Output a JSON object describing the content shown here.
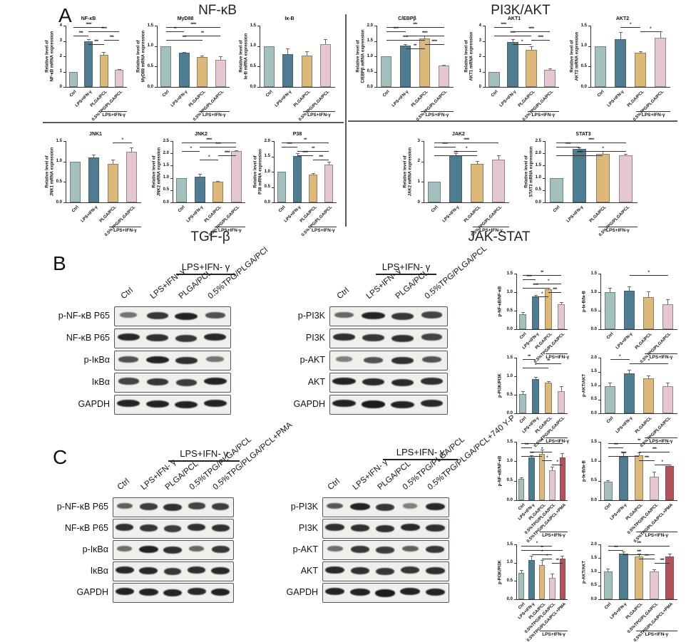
{
  "palette": {
    "bars": [
      "#a3bfbe",
      "#4e7d92",
      "#ddb87b",
      "#e5c8cf",
      "#b2535c"
    ],
    "axis": "#333333",
    "band": "#161616"
  },
  "groups": {
    "g4": {
      "labels": [
        "Ctrl",
        "LPS+IFN-γ",
        "PLGA/PCL",
        "0.5%TPG/PLGA/PCL"
      ],
      "bracket": {
        "from": 2,
        "to": 3,
        "label": "LPS+IFN-γ"
      }
    },
    "g5": {
      "labels": [
        "Ctrl",
        "LPS+IFN-γ",
        "PLGA/PCL",
        "0.5%TPG/PLGA/PCL",
        "0.5%TPG/PLGA/PCL+PMA"
      ],
      "bracket": {
        "from": 2,
        "to": 4,
        "label": "LPS+IFN-γ"
      }
    }
  },
  "panel_a": {
    "label": "A",
    "sections": {
      "nfkb": "NF-κB",
      "pi3k_akt": "PI3K/AKT",
      "tgf_b": "TGF-β",
      "jak_stat": "JAK-STAT"
    }
  },
  "panel_b": {
    "label": "B",
    "blots": [
      {
        "id": "bl",
        "treatment": "LPS+IFN- γ",
        "lanes": [
          "Ctrl",
          "LPS+IFN- γ",
          "PLGA/PCL",
          "0.5%TPG/PLGA/PCl"
        ],
        "rows": [
          {
            "name": "p-NF-κB P65",
            "bands": [
              0.35,
              0.8,
              0.95,
              0.6
            ]
          },
          {
            "name": "NF-κB P65",
            "bands": [
              0.9,
              0.85,
              0.8,
              0.9
            ]
          },
          {
            "name": "p-IκBα",
            "bands": [
              0.6,
              0.95,
              0.85,
              0.35
            ]
          },
          {
            "name": "IκBα",
            "bands": [
              0.7,
              0.8,
              0.75,
              0.95
            ]
          },
          {
            "name": "GAPDH",
            "bands": [
              0.95,
              0.95,
              0.95,
              0.95
            ]
          }
        ]
      },
      {
        "id": "bm",
        "treatment": "LPS+IFN- γ",
        "lanes": [
          "Ctrl",
          "LPS+IFN- γ",
          "PLGA/PCL",
          "0.5%TPG/PLGA/PCL"
        ],
        "rows": [
          {
            "name": "p-PI3K",
            "bands": [
              0.45,
              0.95,
              0.8,
              0.7
            ]
          },
          {
            "name": "PI3K",
            "bands": [
              0.85,
              0.8,
              0.85,
              0.7
            ]
          },
          {
            "name": "p-AKT",
            "bands": [
              0.25,
              0.6,
              0.85,
              0.6
            ]
          },
          {
            "name": "AKT",
            "bands": [
              0.95,
              0.9,
              0.9,
              0.85
            ]
          },
          {
            "name": "GAPDH",
            "bands": [
              0.95,
              1,
              0.95,
              0.9
            ]
          }
        ]
      }
    ]
  },
  "panel_c": {
    "label": "C",
    "blots": [
      {
        "id": "cl",
        "treatment": "LPS+IFN- γ",
        "lanes": [
          "Ctrl",
          "LPS+IFN- γ",
          "PLGA/PCL",
          "0.5%TPG/PLGA/PCL",
          "0.5%TPG/PLGA/PCL+PMA"
        ],
        "rows": [
          {
            "name": "p-NF-κB P65",
            "bands": [
              0.5,
              0.75,
              0.85,
              0.7,
              0.75
            ]
          },
          {
            "name": "NF-κB P65",
            "bands": [
              0.85,
              0.8,
              0.75,
              0.85,
              0.85
            ]
          },
          {
            "name": "p-IκBα",
            "bands": [
              0.4,
              0.95,
              0.85,
              0.45,
              0.8
            ]
          },
          {
            "name": "IκBα",
            "bands": [
              0.9,
              0.9,
              0.8,
              0.85,
              0.9
            ]
          },
          {
            "name": "GAPDH",
            "bands": [
              0.95,
              0.95,
              0.95,
              0.9,
              0.95
            ]
          }
        ]
      },
      {
        "id": "cm",
        "treatment": "LPS+IFN- γ",
        "lanes": [
          "Ctrl",
          "LPS+IFN- γ",
          "PLGA/PCL",
          "0.5%TPG/PLGA/PCL",
          "0.5%TPG/PLGA/PCL+740 Y-P"
        ],
        "rows": [
          {
            "name": "p-PI3K",
            "bands": [
              0.55,
              0.95,
              0.8,
              0.25,
              0.9
            ]
          },
          {
            "name": "PI3K",
            "bands": [
              0.85,
              0.85,
              0.85,
              0.9,
              0.85
            ]
          },
          {
            "name": "p-AKT",
            "bands": [
              0.4,
              0.8,
              0.75,
              0.5,
              0.8
            ]
          },
          {
            "name": "AKT",
            "bands": [
              0.9,
              0.85,
              0.8,
              0.8,
              0.85
            ]
          },
          {
            "name": "GAPDH",
            "bands": [
              0.95,
              0.95,
              1,
              0.95,
              0.95
            ]
          }
        ]
      }
    ]
  },
  "chart_data": [
    {
      "id": "a1",
      "panel": "A",
      "type": "bar",
      "title": "NF-κB",
      "ylabel": "Relative level of|NF-κB mRNA expression",
      "ymax": 4,
      "yticks": [
        "0",
        "1",
        "2",
        "3",
        "4"
      ],
      "group": "g4",
      "values": [
        1.0,
        3.0,
        2.1,
        1.1
      ],
      "errors": [
        0,
        0.12,
        0.18,
        0.08
      ],
      "sig": [
        [
          0,
          2,
          "****"
        ],
        [
          1,
          3,
          "****"
        ],
        [
          0,
          1,
          "***"
        ],
        [
          2,
          3,
          "***"
        ],
        [
          1,
          2,
          "***"
        ]
      ]
    },
    {
      "id": "a2",
      "panel": "A",
      "type": "bar",
      "title": "MyD88",
      "ylabel": "Relative level of|MyD88 mRNA expression",
      "ymax": 1.5,
      "yticks": [
        "0.0",
        "0.5",
        "1.0",
        "1.5"
      ],
      "group": "g4",
      "values": [
        1.0,
        0.84,
        0.74,
        0.67
      ],
      "errors": [
        0,
        0.02,
        0.02,
        0.08
      ],
      "sig": [
        [
          0,
          3,
          "****"
        ],
        [
          0,
          1,
          "**"
        ],
        [
          1,
          3,
          "**"
        ],
        [
          0,
          2,
          "***"
        ]
      ]
    },
    {
      "id": "a3",
      "panel": "A",
      "type": "bar",
      "title": "Iκ-B",
      "ylabel": "Relative level of|Iκ-B mRNA expression",
      "ymax": 1.5,
      "yticks": [
        "0.0",
        "0.5",
        "1.0",
        "1.5"
      ],
      "group": "g4",
      "values": [
        1.0,
        0.81,
        0.76,
        1.04
      ],
      "errors": [
        0,
        0.14,
        0.12,
        0.12
      ],
      "sig": []
    },
    {
      "id": "a4",
      "panel": "A",
      "type": "bar",
      "title": "C/EBPβ",
      "ylabel": "Relative level of|C/EBPβ mRNA expression",
      "ymax": 2,
      "yticks": [
        "0.0",
        "0.5",
        "1.0",
        "1.5",
        "2.0"
      ],
      "group": "g4",
      "values": [
        1.0,
        1.36,
        1.57,
        0.69
      ],
      "errors": [
        0,
        0.03,
        0.1,
        0.03
      ],
      "sig": [
        [
          0,
          3,
          "***"
        ],
        [
          0,
          1,
          "****"
        ],
        [
          1,
          3,
          "****"
        ],
        [
          0,
          2,
          "****"
        ],
        [
          2,
          3,
          "****"
        ],
        [
          1,
          2,
          "**"
        ]
      ]
    },
    {
      "id": "a5",
      "panel": "A",
      "type": "bar",
      "title": "AKT1",
      "ylabel": "Relative level of|AKT1 mRNA expression",
      "ymax": 4,
      "yticks": [
        "0",
        "1",
        "2",
        "3",
        "4"
      ],
      "group": "g4",
      "values": [
        1.0,
        2.95,
        2.4,
        1.1
      ],
      "errors": [
        0,
        0.15,
        0.25,
        0.1
      ],
      "sig": [
        [
          0,
          1,
          "****"
        ],
        [
          1,
          3,
          "****"
        ],
        [
          0,
          2,
          "****"
        ],
        [
          2,
          3,
          "****"
        ],
        [
          1,
          2,
          "*"
        ]
      ]
    },
    {
      "id": "a6",
      "panel": "A",
      "type": "bar",
      "title": "AKT2",
      "ylabel": "Relative level of|AKT2 mRNA expression",
      "ymax": 1.5,
      "yticks": [
        "0.0",
        "0.5",
        "1.0",
        "1.5"
      ],
      "group": "g4",
      "values": [
        1.0,
        1.17,
        0.84,
        1.2
      ],
      "errors": [
        0,
        0.18,
        0.04,
        0.16
      ],
      "sig": [
        [
          1,
          2,
          "*"
        ],
        [
          2,
          3,
          "*"
        ]
      ]
    },
    {
      "id": "a7",
      "panel": "A",
      "type": "bar",
      "title": "JNK1",
      "ylabel": "Relative level of|JNK1 mRNA expression",
      "ymax": 1.5,
      "yticks": [
        "0.0",
        "0.5",
        "1.0",
        "1.5"
      ],
      "group": "g4",
      "values": [
        1.0,
        1.1,
        0.95,
        1.23
      ],
      "errors": [
        0,
        0.07,
        0.1,
        0.12
      ],
      "sig": [
        [
          2,
          3,
          "*"
        ]
      ]
    },
    {
      "id": "a8",
      "panel": "A",
      "type": "bar",
      "title": "JNK2",
      "ylabel": "Relative level of|JNK2 mRNA expression",
      "ymax": 2.5,
      "yticks": [
        "0.0",
        "0.5",
        "1.0",
        "1.5",
        "2.0",
        "2.5"
      ],
      "group": "g4",
      "values": [
        1.0,
        1.05,
        0.85,
        2.1
      ],
      "errors": [
        0,
        0.1,
        0.02,
        0.03
      ],
      "sig": [
        [
          0,
          3,
          "****"
        ],
        [
          1,
          3,
          "****"
        ],
        [
          0,
          1,
          "*"
        ],
        [
          2,
          3,
          "****"
        ],
        [
          1,
          2,
          "*"
        ]
      ]
    },
    {
      "id": "a9",
      "panel": "A",
      "type": "bar",
      "title": "P38",
      "ylabel": "Relative level of|P38 mRNA expression",
      "ymax": 2,
      "yticks": [
        "0.0",
        "0.5",
        "1.0",
        "1.5",
        "2.0"
      ],
      "group": "g4",
      "values": [
        1.0,
        1.52,
        0.9,
        1.24
      ],
      "errors": [
        0,
        0.08,
        0.05,
        0.08
      ],
      "sig": [
        [
          0,
          3,
          "**"
        ],
        [
          0,
          1,
          "****"
        ],
        [
          1,
          3,
          "**"
        ],
        [
          1,
          2,
          "****"
        ],
        [
          2,
          3,
          "***"
        ]
      ]
    },
    {
      "id": "a10",
      "panel": "A",
      "type": "bar",
      "title": "JAK2",
      "ylabel": "Relative level of|JAK2 mRNA expression",
      "ymax": 3,
      "yticks": [
        "0",
        "1",
        "2",
        "3"
      ],
      "group": "g4",
      "values": [
        1.0,
        2.3,
        1.9,
        2.1
      ],
      "errors": [
        0,
        0.12,
        0.12,
        0.2
      ],
      "sig": [
        [
          0,
          3,
          "****"
        ],
        [
          0,
          1,
          "****"
        ],
        [
          1,
          2,
          "*"
        ],
        [
          0,
          2,
          "***"
        ]
      ]
    },
    {
      "id": "a11",
      "panel": "A",
      "type": "bar",
      "title": "STAT3",
      "ylabel": "Relative level of|STAT3 mRNA expression",
      "ymax": 2.5,
      "yticks": [
        "0.0",
        "0.5",
        "1.0",
        "1.5",
        "2.0",
        "2.5"
      ],
      "group": "g4",
      "values": [
        1.0,
        2.17,
        1.97,
        1.93
      ],
      "errors": [
        0,
        0.06,
        0.12,
        0.04
      ],
      "sig": [
        [
          0,
          3,
          "****"
        ],
        [
          0,
          1,
          "****"
        ],
        [
          1,
          3,
          "*"
        ],
        [
          0,
          2,
          "****"
        ]
      ]
    },
    {
      "id": "b1",
      "panel": "B",
      "type": "bar",
      "title": "",
      "ylabel": "p-NF-κB/NF-κB",
      "ymax": 1.5,
      "yticks": [
        "0.0",
        "0.5",
        "1.0",
        "1.5"
      ],
      "group": "g4",
      "values": [
        0.4,
        0.88,
        1.07,
        0.67
      ],
      "errors": [
        0.06,
        0.05,
        0.04,
        0.07
      ],
      "sig": [
        [
          0,
          3,
          "**"
        ],
        [
          0,
          1,
          "****"
        ],
        [
          1,
          3,
          "*"
        ],
        [
          0,
          2,
          "****"
        ],
        [
          2,
          3,
          "***"
        ],
        [
          1,
          2,
          "*"
        ]
      ]
    },
    {
      "id": "b2",
      "panel": "B",
      "type": "bar",
      "title": "",
      "ylabel": "p-Iκ-B/Iκ-B",
      "ymax": 1.5,
      "yticks": [
        "0.0",
        "0.5",
        "1.0",
        "1.5"
      ],
      "group": "g4",
      "values": [
        1.0,
        1.04,
        0.87,
        0.67
      ],
      "errors": [
        0.12,
        0.12,
        0.14,
        0.13
      ],
      "sig": [
        [
          1,
          3,
          "*"
        ]
      ]
    },
    {
      "id": "b3",
      "panel": "B",
      "type": "bar",
      "title": "",
      "ylabel": "p-PI3K/PI3K",
      "ymax": 1.5,
      "yticks": [
        "0.0",
        "0.5",
        "1.0",
        "1.5"
      ],
      "group": "g4",
      "values": [
        0.51,
        0.93,
        0.82,
        0.59
      ],
      "errors": [
        0.09,
        0.06,
        0.05,
        0.14
      ],
      "sig": [
        [
          0,
          1,
          "**"
        ],
        [
          1,
          3,
          "**"
        ],
        [
          0,
          2,
          "*"
        ]
      ]
    },
    {
      "id": "b4",
      "panel": "B",
      "type": "bar",
      "title": "",
      "ylabel": "p-AKT/AKT",
      "ymax": 2,
      "yticks": [
        "0.0",
        "0.5",
        "1.0",
        "1.5",
        "2.0"
      ],
      "group": "g4",
      "values": [
        0.98,
        1.44,
        1.25,
        0.98
      ],
      "errors": [
        0.12,
        0.13,
        0.12,
        0.12
      ],
      "sig": [
        [
          0,
          1,
          "*"
        ],
        [
          1,
          3,
          "*"
        ]
      ]
    },
    {
      "id": "c1",
      "panel": "C",
      "type": "bar",
      "title": "",
      "ylabel": "p-NF-κB/NF-κB",
      "ymax": 1.5,
      "yticks": [
        "0.0",
        "0.5",
        "1.0",
        "1.5"
      ],
      "group": "g5",
      "values": [
        0.55,
        1.1,
        1.18,
        0.76,
        1.09
      ],
      "errors": [
        0.04,
        0.06,
        0.12,
        0.1,
        0.12
      ],
      "sig": [
        [
          0,
          4,
          "**"
        ],
        [
          0,
          1,
          "***"
        ],
        [
          1,
          3,
          "*"
        ],
        [
          0,
          2,
          "***"
        ],
        [
          2,
          3,
          "*"
        ],
        [
          3,
          4,
          "*"
        ]
      ]
    },
    {
      "id": "c2",
      "panel": "C",
      "type": "bar",
      "title": "",
      "ylabel": "p-Iκ-B/Iκ-B",
      "ymax": 1.5,
      "yticks": [
        "0.0",
        "0.5",
        "1.0",
        "1.5"
      ],
      "group": "g5",
      "values": [
        0.47,
        1.12,
        1.15,
        0.61,
        0.88
      ],
      "errors": [
        0.05,
        0.1,
        0.08,
        0.12,
        0.04
      ],
      "sig": [
        [
          0,
          4,
          "**"
        ],
        [
          0,
          1,
          "***"
        ],
        [
          2,
          4,
          "***"
        ],
        [
          0,
          2,
          "****"
        ],
        [
          2,
          3,
          "***"
        ],
        [
          3,
          4,
          "*"
        ]
      ]
    },
    {
      "id": "c3",
      "panel": "C",
      "type": "bar",
      "title": "",
      "ylabel": "p-PI3K/PI3K",
      "ymax": 1.5,
      "yticks": [
        "0.0",
        "0.5",
        "1.0",
        "1.5"
      ],
      "group": "g5",
      "values": [
        0.72,
        1.07,
        0.94,
        0.58,
        1.12
      ],
      "errors": [
        0.08,
        0.12,
        0.13,
        0.12,
        0.06
      ],
      "sig": [
        [
          0,
          3,
          "*"
        ],
        [
          0,
          4,
          "**"
        ],
        [
          1,
          3,
          "*"
        ],
        [
          2,
          3,
          "*"
        ],
        [
          3,
          4,
          "**"
        ]
      ]
    },
    {
      "id": "c4",
      "panel": "C",
      "type": "bar",
      "title": "",
      "ylabel": "p-AKT/AKT",
      "ymax": 2,
      "yticks": [
        "0.0",
        "0.5",
        "1.0",
        "1.5",
        "2.0"
      ],
      "group": "g5",
      "values": [
        1.02,
        1.65,
        1.55,
        1.02,
        1.55
      ],
      "errors": [
        0.1,
        0.1,
        0.12,
        0.07,
        0.12
      ],
      "sig": [
        [
          0,
          4,
          "***"
        ],
        [
          0,
          1,
          "***"
        ],
        [
          1,
          3,
          "***"
        ],
        [
          2,
          3,
          "***"
        ],
        [
          3,
          4,
          "***"
        ]
      ]
    }
  ]
}
